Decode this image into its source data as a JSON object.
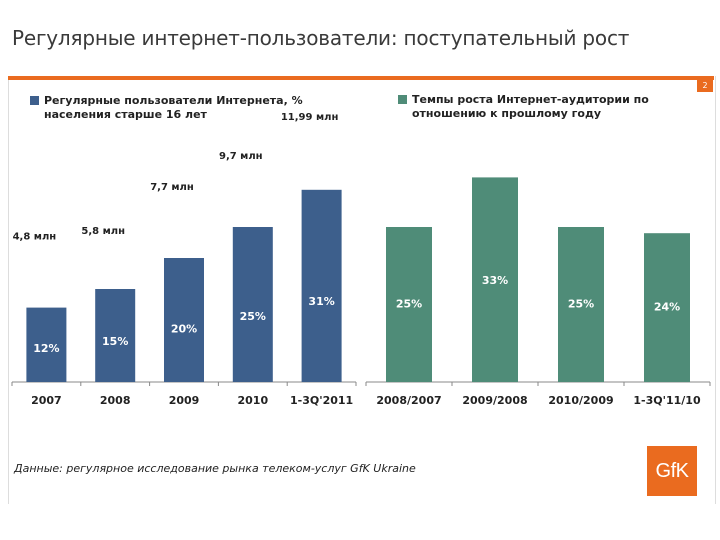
{
  "title": "Регулярные интернет-пользователи: поступательный рост",
  "page_number": "2",
  "source": "Данные: регулярное исследование рынка телеком-услуг GfK Ukraine",
  "logo_text": "GfK",
  "colors": {
    "accent": "#ea6b1f",
    "series_users": "#3d5f8c",
    "series_growth": "#4f8c78"
  },
  "chart_data": [
    {
      "type": "bar",
      "legend": "Регулярные пользователи Интернета, % населения старше 16 лет",
      "categories": [
        "2007",
        "2008",
        "2009",
        "2010",
        "1-3Q'2011"
      ],
      "values": [
        12,
        15,
        20,
        25,
        31
      ],
      "value_labels": [
        "12%",
        "15%",
        "20%",
        "25%",
        "31%"
      ],
      "annotations": [
        "4,8 млн",
        "5,8 млн",
        "7,7 млн",
        "9,7 млн",
        "11,99 млн"
      ],
      "legend_position": "top-left",
      "grid": false
    },
    {
      "type": "bar",
      "legend": "Темпы роста Интернет-аудитории по отношению к прошлому году",
      "categories": [
        "2008/2007",
        "2009/2008",
        "2010/2009",
        "1-3Q'11/10"
      ],
      "values": [
        25,
        33,
        25,
        24
      ],
      "value_labels": [
        "25%",
        "33%",
        "25%",
        "24%"
      ],
      "legend_position": "top-left",
      "grid": false
    }
  ]
}
